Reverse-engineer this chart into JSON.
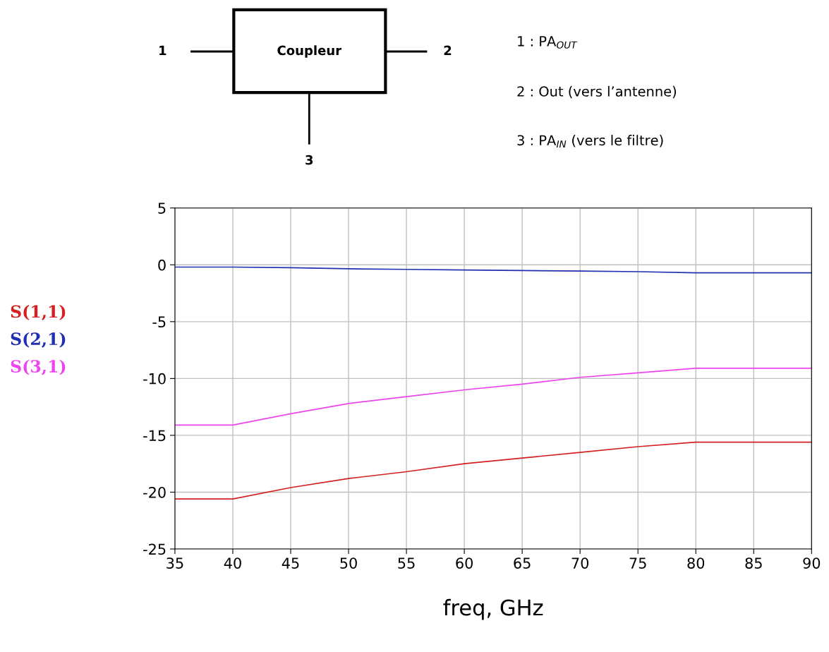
{
  "chart_data": {
    "type": "line",
    "xlabel": "freq, GHz",
    "x": [
      35,
      40,
      45,
      50,
      55,
      60,
      65,
      70,
      75,
      80,
      85,
      90
    ],
    "series": [
      {
        "name": "S(1,1)",
        "color": "#d42020",
        "values": [
          -20.6,
          -20.6,
          -19.6,
          -18.8,
          -18.2,
          -17.5,
          -17.0,
          -16.5,
          -16.0,
          -15.6,
          -15.6,
          -15.6
        ]
      },
      {
        "name": "S(2,1)",
        "color": "#2030b0",
        "values": [
          -0.2,
          -0.2,
          -0.25,
          -0.35,
          -0.4,
          -0.45,
          -0.5,
          -0.55,
          -0.6,
          -0.7,
          -0.7,
          -0.7
        ]
      },
      {
        "name": "S(3,1)",
        "color": "#ee44ee",
        "values": [
          -14.1,
          -14.1,
          -13.1,
          -12.2,
          -11.6,
          -11.0,
          -10.5,
          -9.9,
          -9.5,
          -9.1,
          -9.1,
          -9.1
        ]
      }
    ],
    "xlim": [
      35,
      90
    ],
    "xticks": [
      35,
      40,
      45,
      50,
      55,
      60,
      65,
      70,
      75,
      80,
      85,
      90
    ],
    "ylim": [
      -25,
      5
    ],
    "yticks": [
      -25,
      -20,
      -15,
      -10,
      -5,
      0,
      5
    ],
    "grid": true,
    "legend": "left",
    "marker": "none",
    "line_style": "solid",
    "annotations": [
      "Coupleur",
      "1",
      "2",
      "3",
      "1 : PA$_{OUT}$",
      "2 : Out (vers l’antenne)",
      "3 : PA$_{IN}$ (vers le filtre)"
    ]
  }
}
